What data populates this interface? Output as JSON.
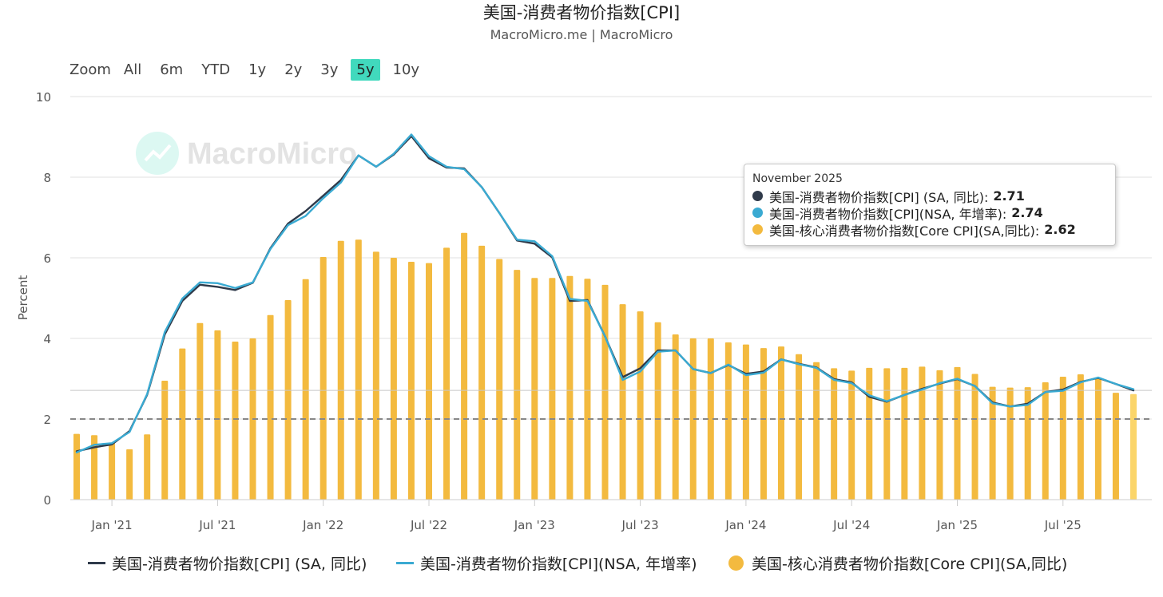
{
  "title": "美国-消费者物价指数[CPI]",
  "subtitle": "MacroMicro.me | MacroMicro",
  "watermark": "MacroMicro",
  "zoom": {
    "label": "Zoom",
    "buttons": [
      "All",
      "6m",
      "YTD",
      "1y",
      "2y",
      "3y",
      "5y",
      "10y"
    ],
    "active": "5y"
  },
  "colors": {
    "sa_line": "#2f3a4a",
    "nsa_line": "#3aaad2",
    "core_bar": "#f3ba3f",
    "core_bar_last": "#fbd56a",
    "active_zoom": "#41d9bd"
  },
  "tooltip": {
    "date": "November 2025",
    "rows": [
      {
        "label": "美国-消费者物价指数[CPI] (SA, 同比):",
        "value": "2.71",
        "color": "#2f3a4a"
      },
      {
        "label": "美国-消费者物价指数[CPI](NSA, 年增率):",
        "value": "2.74",
        "color": "#3aaad2"
      },
      {
        "label": "美国-核心消费者物价指数[Core CPI](SA,同比):",
        "value": "2.62",
        "color": "#f3ba3f"
      }
    ]
  },
  "legend": [
    {
      "label": "美国-消费者物价指数[CPI] (SA, 同比)",
      "color": "#2f3a4a",
      "marker": "line"
    },
    {
      "label": "美国-消费者物价指数[CPI](NSA, 年增率)",
      "color": "#3aaad2",
      "marker": "line"
    },
    {
      "label": "美国-核心消费者物价指数[Core CPI](SA,同比)",
      "color": "#f3ba3f",
      "marker": "circle"
    }
  ],
  "chart_data": {
    "type": "bar+line",
    "title": "美国-消费者物价指数[CPI]",
    "ylabel": "Percent",
    "ylim": [
      0,
      10
    ],
    "yticks": [
      0,
      2,
      4,
      6,
      8,
      10
    ],
    "x_start": "2020-11",
    "x_end": "2025-11",
    "x_tick_labels": [
      "Jan '21",
      "Jul '21",
      "Jan '22",
      "Jul '22",
      "Jan '23",
      "Jul '23",
      "Jan '24",
      "Jul '24",
      "Jan '25",
      "Jul '25"
    ],
    "x_tick_months": [
      "2021-01",
      "2021-07",
      "2022-01",
      "2022-07",
      "2023-01",
      "2023-07",
      "2024-01",
      "2024-07",
      "2025-01",
      "2025-07"
    ],
    "reference_line": 2,
    "grid": true,
    "legend_position": "bottom",
    "months": [
      "2020-11",
      "2020-12",
      "2021-01",
      "2021-02",
      "2021-03",
      "2021-04",
      "2021-05",
      "2021-06",
      "2021-07",
      "2021-08",
      "2021-09",
      "2021-10",
      "2021-11",
      "2021-12",
      "2022-01",
      "2022-02",
      "2022-03",
      "2022-04",
      "2022-05",
      "2022-06",
      "2022-07",
      "2022-08",
      "2022-09",
      "2022-10",
      "2022-11",
      "2022-12",
      "2023-01",
      "2023-02",
      "2023-03",
      "2023-04",
      "2023-05",
      "2023-06",
      "2023-07",
      "2023-08",
      "2023-09",
      "2023-10",
      "2023-11",
      "2023-12",
      "2024-01",
      "2024-02",
      "2024-03",
      "2024-04",
      "2024-05",
      "2024-06",
      "2024-07",
      "2024-08",
      "2024-09",
      "2024-10",
      "2024-11",
      "2024-12",
      "2025-01",
      "2025-02",
      "2025-03",
      "2025-04",
      "2025-05",
      "2025-06",
      "2025-07",
      "2025-08",
      "2025-09",
      "2025-10",
      "2025-11"
    ],
    "series": [
      {
        "name": "美国-消费者物价指数[CPI] (SA, 同比)",
        "kind": "line",
        "values": [
          1.2,
          1.3,
          1.37,
          1.7,
          2.6,
          4.1,
          4.93,
          5.33,
          5.28,
          5.2,
          5.38,
          6.24,
          6.85,
          7.16,
          7.54,
          7.93,
          8.54,
          8.26,
          8.56,
          9.02,
          8.47,
          8.24,
          8.22,
          7.75,
          7.11,
          6.43,
          6.35,
          6.01,
          4.93,
          4.95,
          4.05,
          3.04,
          3.26,
          3.7,
          3.7,
          3.24,
          3.14,
          3.34,
          3.12,
          3.18,
          3.48,
          3.37,
          3.28,
          2.99,
          2.91,
          2.55,
          2.43,
          2.6,
          2.75,
          2.88,
          2.99,
          2.82,
          2.41,
          2.31,
          2.38,
          2.67,
          2.73,
          2.92,
          3.02,
          2.87,
          2.71
        ]
      },
      {
        "name": "美国-消费者物价指数[CPI](NSA, 年增率)",
        "kind": "line",
        "values": [
          1.17,
          1.36,
          1.4,
          1.68,
          2.62,
          4.16,
          4.99,
          5.39,
          5.37,
          5.25,
          5.39,
          6.22,
          6.81,
          7.04,
          7.48,
          7.87,
          8.54,
          8.26,
          8.58,
          9.06,
          8.52,
          8.26,
          8.2,
          7.75,
          7.11,
          6.45,
          6.41,
          6.04,
          4.98,
          4.93,
          4.05,
          2.97,
          3.18,
          3.67,
          3.7,
          3.24,
          3.14,
          3.35,
          3.09,
          3.15,
          3.48,
          3.36,
          3.27,
          2.97,
          2.89,
          2.59,
          2.44,
          2.6,
          2.73,
          2.89,
          3.0,
          2.82,
          2.39,
          2.31,
          2.35,
          2.67,
          2.7,
          2.91,
          3.03,
          2.87,
          2.74
        ]
      },
      {
        "name": "美国-核心消费者物价指数[Core CPI](SA,同比)",
        "kind": "bar",
        "values": [
          1.63,
          1.6,
          1.4,
          1.25,
          1.62,
          2.95,
          3.75,
          4.38,
          4.2,
          3.92,
          4.0,
          4.58,
          4.95,
          5.47,
          6.02,
          6.42,
          6.45,
          6.15,
          6.0,
          5.9,
          5.87,
          6.25,
          6.62,
          6.3,
          5.97,
          5.7,
          5.5,
          5.5,
          5.55,
          5.48,
          5.33,
          4.85,
          4.67,
          4.4,
          4.1,
          4.0,
          4.0,
          3.9,
          3.85,
          3.76,
          3.8,
          3.61,
          3.41,
          3.26,
          3.2,
          3.27,
          3.26,
          3.27,
          3.3,
          3.21,
          3.29,
          3.12,
          2.8,
          2.78,
          2.79,
          2.91,
          3.05,
          3.11,
          3.03,
          2.65,
          2.62
        ]
      }
    ]
  }
}
